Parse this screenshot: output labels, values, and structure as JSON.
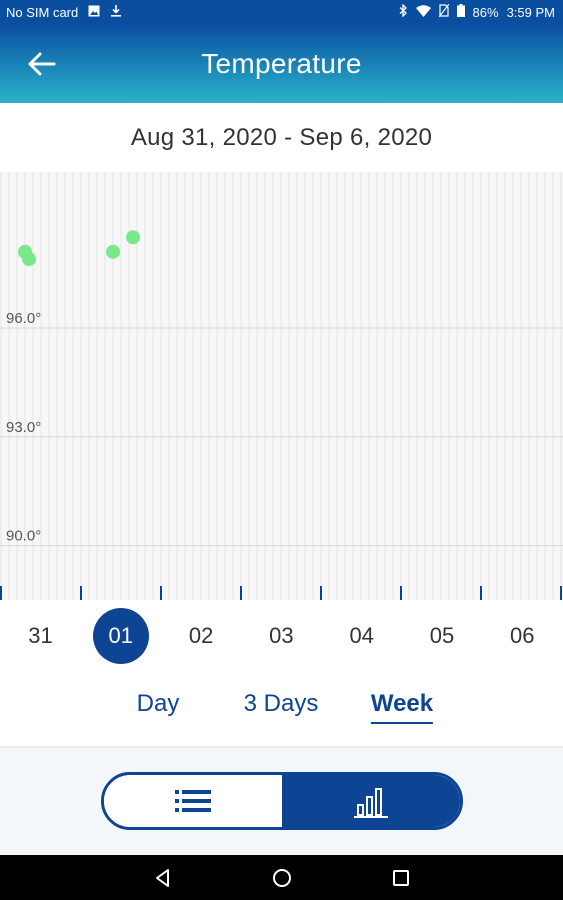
{
  "status_bar": {
    "carrier": "No SIM card",
    "battery": "86%",
    "time": "3:59 PM",
    "icons": [
      "image-icon",
      "download-icon",
      "bluetooth-icon",
      "wifi-icon",
      "no-sim-icon",
      "battery-icon"
    ]
  },
  "app_bar": {
    "title": "Temperature",
    "back_icon": "arrow-left-icon"
  },
  "range_label": "Aug 31, 2020 - Sep 6, 2020",
  "chart_data": {
    "type": "scatter",
    "title": "",
    "xlabel": "",
    "ylabel": "",
    "y_ticks": [
      "96.0°",
      "93.0°",
      "90.0°"
    ],
    "ylim": [
      88.5,
      100.3
    ],
    "xlim": [
      0,
      7
    ],
    "grid": true,
    "point_color": "#79e88a",
    "series": [
      {
        "x": [
          0.3,
          0.35,
          1.4,
          1.65
        ],
        "y": [
          98.1,
          97.9,
          98.1,
          98.5
        ]
      }
    ]
  },
  "day_selector": {
    "days": [
      "31",
      "01",
      "02",
      "03",
      "04",
      "05",
      "06"
    ],
    "selected_index": 1
  },
  "periods": {
    "options": [
      "Day",
      "3 Days",
      "Week"
    ],
    "active_index": 2
  },
  "view_toggle": {
    "left_icon": "list-icon",
    "right_icon": "bar-chart-icon",
    "active": "right"
  },
  "nav_bar": {
    "icons": [
      "back-triangle-icon",
      "home-circle-icon",
      "recents-square-icon"
    ]
  },
  "colors": {
    "primary": "#0d4494",
    "header_gradient_top": "#0a4ea0",
    "header_gradient_bottom": "#2bb3c6",
    "data_point": "#79e88a"
  }
}
